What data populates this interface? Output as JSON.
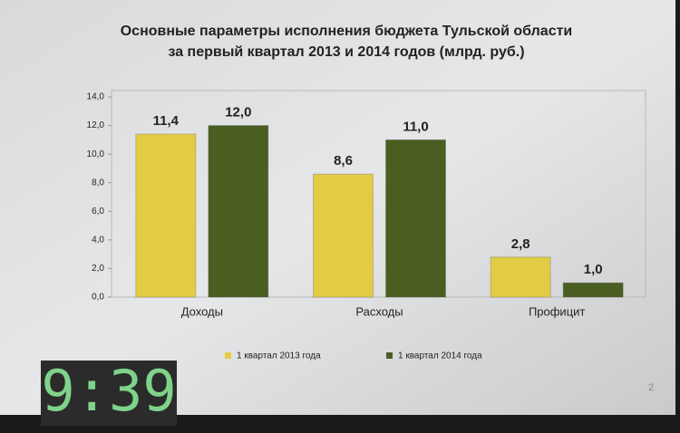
{
  "chart_data": {
    "type": "bar",
    "title": "Основные параметры исполнения бюджета Тульской области",
    "subtitle": "за первый квартал 2013 и 2014 годов (млрд. руб.)",
    "categories": [
      "Доходы",
      "Расходы",
      "Профицит"
    ],
    "series": [
      {
        "name": "1 квартал 2013 года",
        "color": "#e2cc45",
        "values": [
          11.4,
          8.6,
          2.8
        ],
        "value_labels": [
          "11,4",
          "8,6",
          "2,8"
        ]
      },
      {
        "name": "1 квартал 2014 года",
        "color": "#4a5e22",
        "values": [
          12.0,
          11.0,
          1.0
        ],
        "value_labels": [
          "12,0",
          "11,0",
          "1,0"
        ]
      }
    ],
    "ylim": [
      0,
      14
    ],
    "yticks": [
      {
        "value": 0,
        "label": "0,0"
      },
      {
        "value": 2,
        "label": "2,0"
      },
      {
        "value": 4,
        "label": "4,0"
      },
      {
        "value": 6,
        "label": "6,0"
      },
      {
        "value": 8,
        "label": "8,0"
      },
      {
        "value": 10,
        "label": "10,0"
      },
      {
        "value": 12,
        "label": "12,0"
      },
      {
        "value": 14,
        "label": "14,0"
      }
    ],
    "grid": false,
    "legend": "bottom"
  },
  "page_number": "2",
  "clock": "9:39"
}
